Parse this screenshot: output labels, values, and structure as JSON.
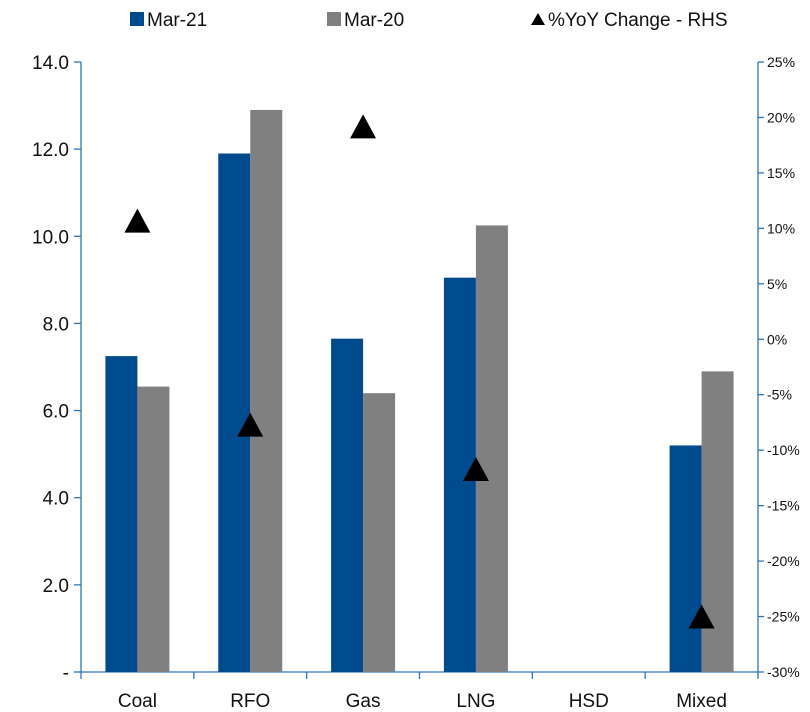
{
  "chart_data": {
    "type": "bar",
    "categories": [
      "Coal",
      "RFO",
      "Gas",
      "LNG",
      "HSD",
      "Mixed"
    ],
    "series": [
      {
        "name": "Mar-21",
        "values": [
          7.25,
          11.9,
          7.65,
          9.05,
          0,
          5.2
        ],
        "color": "#004b8d",
        "axis": "left"
      },
      {
        "name": "Mar-20",
        "values": [
          6.55,
          12.9,
          6.4,
          10.25,
          0,
          6.9
        ],
        "color": "#808080",
        "axis": "left"
      },
      {
        "name": "%YoY Change - RHS",
        "values": [
          10.7,
          -7.7,
          19.2,
          -11.7,
          null,
          -25.0
        ],
        "color": "#000000",
        "axis": "right",
        "marker": "triangle"
      }
    ],
    "left_axis": {
      "ylim": [
        0,
        14
      ],
      "ticks": [
        "-",
        "2.0",
        "4.0",
        "6.0",
        "8.0",
        "10.0",
        "12.0",
        "14.0"
      ]
    },
    "right_axis": {
      "ylim": [
        -30,
        25
      ],
      "ticks": [
        "-30%",
        "-25%",
        "-20%",
        "-15%",
        "-10%",
        "-5%",
        "0%",
        "5%",
        "10%",
        "15%",
        "20%",
        "25%"
      ]
    },
    "legend_position": "top",
    "grid": false,
    "axis_color": "#2e75b6"
  }
}
